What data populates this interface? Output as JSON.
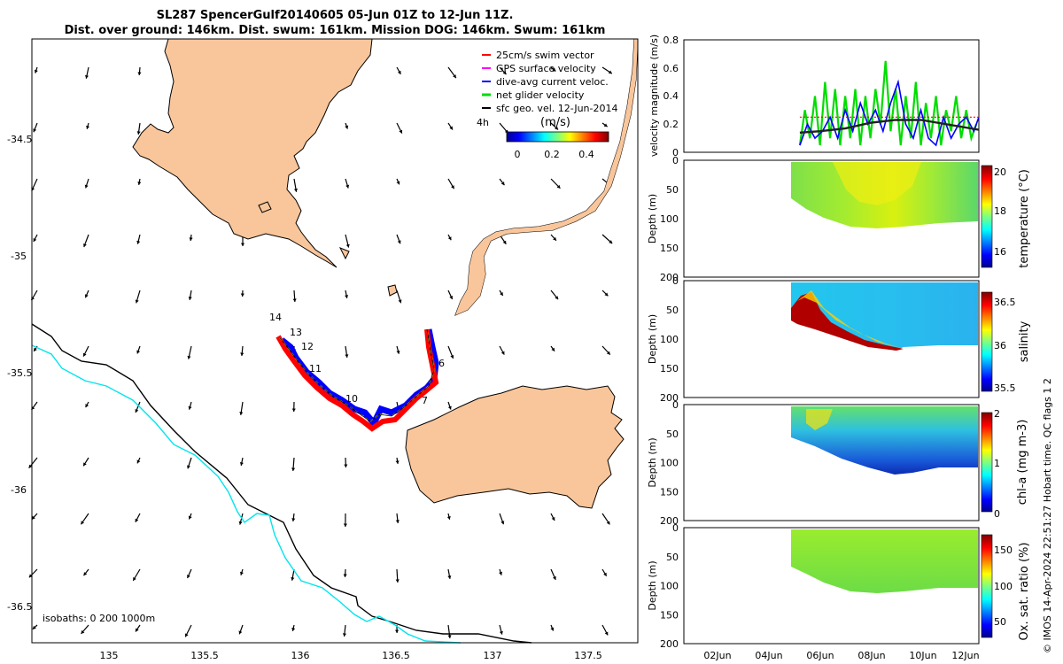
{
  "title": {
    "line1": "SL287 SpencerGulf20140605 05-Jun 01Z to 12-Jun 11Z.",
    "line2": "Dist. over ground: 146km. Dist. swum: 161km. Mission DOG: 146km. Swum: 161km"
  },
  "map": {
    "xticks": [
      "135",
      "135.5",
      "136",
      "136.5",
      "137",
      "137.5"
    ],
    "yticks": [
      "-34.5",
      "-35",
      "-35.5",
      "-36",
      "-36.5"
    ],
    "legend": [
      {
        "label": "25cm/s swim vector",
        "color": "#ff0000"
      },
      {
        "label": "GPS surface velocity",
        "color": "#ff00ff"
      },
      {
        "label": "dive-avg current veloc.",
        "color": "#0000ff"
      },
      {
        "label": "net glider velocity",
        "color": "#00dd00"
      },
      {
        "label": "sfc geo. vel. 12-Jun-2014",
        "color": "#000000"
      }
    ],
    "speed_colorbar": {
      "prefix": "4h",
      "unit": "(m/s)",
      "ticks": [
        "0",
        "0.2",
        "0.4"
      ]
    },
    "isobaths_label": "isobaths: 0   200  1000m",
    "track_day_labels": [
      "14",
      "13",
      "12",
      "11",
      "10",
      "7",
      "6"
    ],
    "land_color": "#f9c69b",
    "isobath_1000_color": "#00e5ee"
  },
  "velocity_panel": {
    "ylabel": "velocity magnitude (m/s)",
    "yticks": [
      "0",
      "0.2",
      "0.4",
      "0.6",
      "0.8"
    ],
    "ylim": [
      0,
      0.8
    ]
  },
  "sections": [
    {
      "ylabel": "Depth (m)",
      "cblabel": "temperature (°C)",
      "cbticks": [
        "16",
        "18",
        "20"
      ]
    },
    {
      "ylabel": "Depth (m)",
      "cblabel": "salinity",
      "cbticks": [
        "35.5",
        "36",
        "36.5"
      ]
    },
    {
      "ylabel": "Depth (m)",
      "cblabel": "chl-a (mg m-3)",
      "cbticks": [
        "0",
        "1",
        "2"
      ]
    },
    {
      "ylabel": "Depth (m)",
      "cblabel": "Ox. sat. ratio (%)",
      "cbticks": [
        "50",
        "100",
        "150"
      ]
    }
  ],
  "section_yticks": [
    "0",
    "50",
    "100",
    "150",
    "200"
  ],
  "time_xticks": [
    "02Jun",
    "04Jun",
    "06Jun",
    "08Jun",
    "10Jun",
    "12Jun"
  ],
  "credit": "© IMOS 14-Apr-2024 22:51:27 Hobart time. QC flags 1  2",
  "chart_data": [
    {
      "type": "line",
      "title": "velocity magnitude (m/s)",
      "x_unit": "date (Jun 2014)",
      "series": [
        {
          "name": "net glider velocity",
          "color": "#00dd00",
          "x": [
            5.2,
            5.4,
            5.6,
            5.8,
            6.0,
            6.2,
            6.4,
            6.6,
            6.8,
            7.0,
            7.2,
            7.4,
            7.6,
            7.8,
            8.0,
            8.2,
            8.4,
            8.6,
            8.8,
            9.0,
            9.2,
            9.4,
            9.6,
            9.8,
            10.0,
            10.2,
            10.4,
            10.6,
            10.8,
            11.0,
            11.2,
            11.4,
            11.6,
            11.8,
            12.0,
            12.2
          ],
          "values": [
            0.05,
            0.3,
            0.1,
            0.4,
            0.05,
            0.5,
            0.1,
            0.45,
            0.05,
            0.4,
            0.1,
            0.45,
            0.05,
            0.4,
            0.1,
            0.45,
            0.2,
            0.65,
            0.15,
            0.45,
            0.05,
            0.4,
            0.1,
            0.5,
            0.05,
            0.35,
            0.1,
            0.4,
            0.05,
            0.3,
            0.15,
            0.4,
            0.1,
            0.3,
            0.1,
            0.2
          ]
        },
        {
          "name": "dive-avg current veloc.",
          "color": "#0000ff",
          "x": [
            5.2,
            5.5,
            5.8,
            6.1,
            6.4,
            6.7,
            7.0,
            7.3,
            7.6,
            7.9,
            8.2,
            8.5,
            8.8,
            9.1,
            9.4,
            9.7,
            10.0,
            10.3,
            10.6,
            10.9,
            11.2,
            11.5,
            11.8,
            12.1,
            12.3
          ],
          "values": [
            0.05,
            0.2,
            0.1,
            0.15,
            0.25,
            0.1,
            0.3,
            0.15,
            0.35,
            0.2,
            0.3,
            0.15,
            0.35,
            0.5,
            0.2,
            0.1,
            0.3,
            0.1,
            0.05,
            0.25,
            0.1,
            0.2,
            0.25,
            0.15,
            0.25
          ]
        },
        {
          "name": "25cm/s swim vector",
          "color": "#ff0000",
          "x": [
            5.2,
            12.3
          ],
          "values": [
            0.25,
            0.25
          ]
        },
        {
          "name": "sfc geo. vel. 12-Jun-2014",
          "color": "#222222",
          "x": [
            5.2,
            6.0,
            7.0,
            8.0,
            9.0,
            10.0,
            11.0,
            12.3
          ],
          "values": [
            0.14,
            0.15,
            0.17,
            0.21,
            0.23,
            0.23,
            0.2,
            0.16
          ]
        }
      ],
      "xlim": [
        0.6,
        12.3
      ],
      "ylim": [
        0,
        0.8
      ]
    }
  ]
}
